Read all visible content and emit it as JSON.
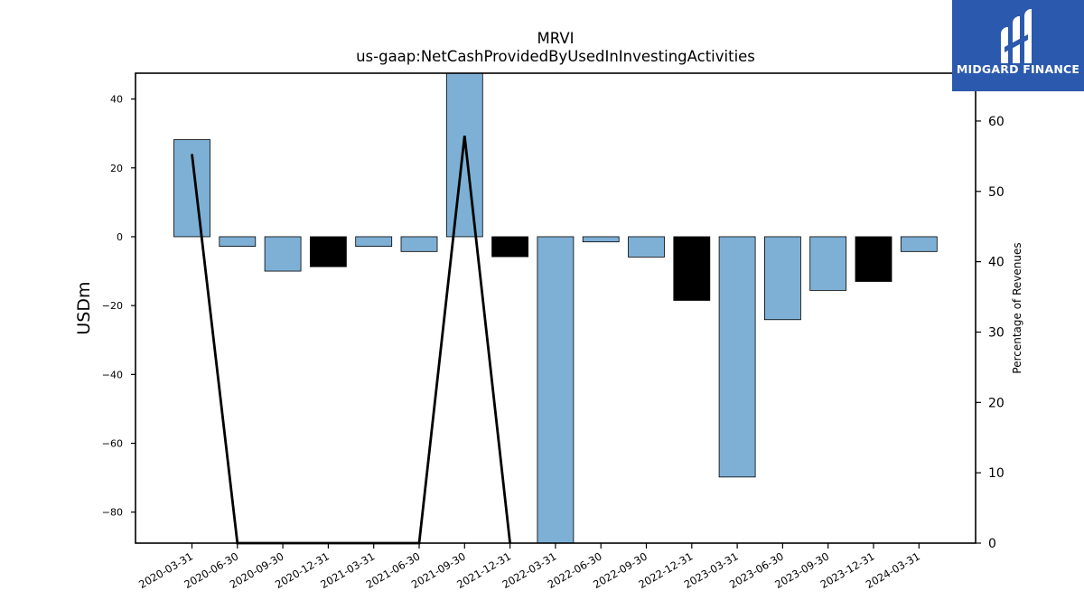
{
  "chart_data": {
    "type": "bar",
    "title": "MRVI",
    "subtitle": "us-gaap:NetCashProvidedByUsedInInvestingActivities",
    "ylabel": "USDm",
    "y2label": "Percentage of Revenues",
    "ylim": [
      -89,
      47.5
    ],
    "y2lim": [
      0,
      66.8
    ],
    "yticks": [
      -80,
      -60,
      -40,
      -20,
      0,
      20,
      40
    ],
    "y2ticks": [
      0,
      10,
      20,
      30,
      40,
      50,
      60
    ],
    "categories": [
      "2020-03-31",
      "2020-06-30",
      "2020-09-30",
      "2020-12-31",
      "2021-03-31",
      "2021-06-30",
      "2021-09-30",
      "2021-12-31",
      "2022-03-31",
      "2022-06-30",
      "2022-09-30",
      "2022-12-31",
      "2023-03-31",
      "2023-06-30",
      "2023-09-30",
      "2023-12-31",
      "2024-03-31"
    ],
    "series": [
      {
        "type": "bar",
        "values": [
          28.2,
          -2.8,
          -10.0,
          -8.7,
          -2.8,
          -4.3,
          48.0,
          -5.8,
          -89.0,
          -1.5,
          -5.9,
          -18.5,
          -69.8,
          -24.1,
          -15.6,
          -13.0,
          -4.3
        ],
        "colors": [
          "#7eb0d5",
          "#7eb0d5",
          "#7eb0d5",
          "#000000",
          "#7eb0d5",
          "#7eb0d5",
          "#7eb0d5",
          "#000000",
          "#7eb0d5",
          "#7eb0d5",
          "#7eb0d5",
          "#000000",
          "#7eb0d5",
          "#7eb0d5",
          "#7eb0d5",
          "#000000",
          "#7eb0d5"
        ]
      },
      {
        "type": "line",
        "axis": "right",
        "color": "#000000",
        "x": [
          "2020-03-31",
          "2020-06-30",
          "2021-06-30",
          "2021-09-30",
          "2021-12-31"
        ],
        "values": [
          55.3,
          0,
          0,
          57.9,
          0
        ]
      }
    ],
    "grid": false
  },
  "logo": {
    "text": "MIDGARD FINANCE",
    "color": "#2b59ad"
  }
}
